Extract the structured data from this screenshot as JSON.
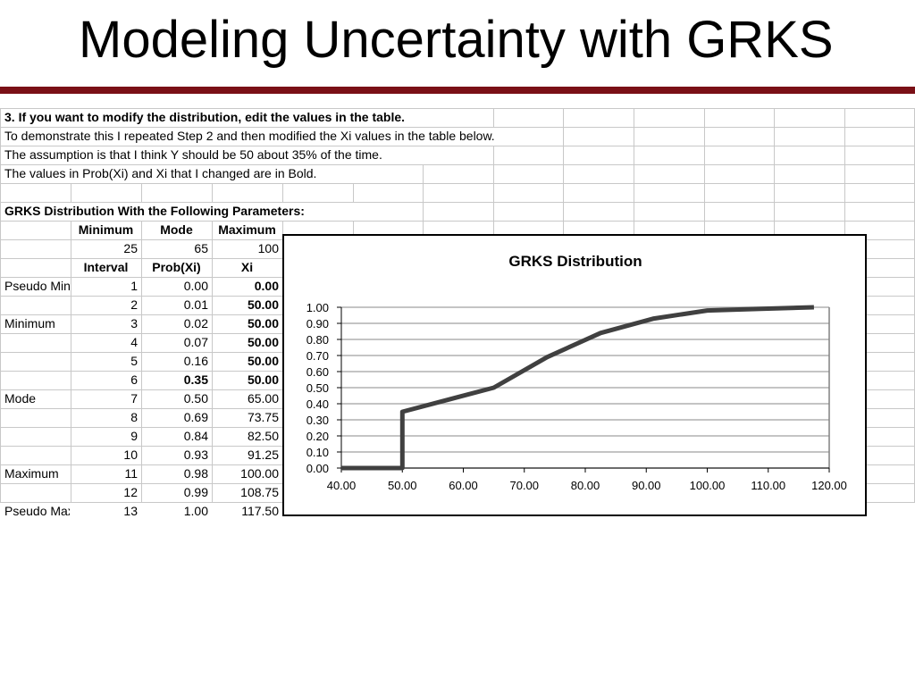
{
  "slide": {
    "title": "Modeling Uncertainty with GRKS",
    "accent": "#7a1016"
  },
  "sheet": {
    "notes": [
      "3.  If you want to modify the distribution, edit the values in the table.",
      "To demonstrate this I repeated Step 2 and then modified the Xi values in the table below.",
      "The assumption is that I think Y should be 50 about 35% of the time.",
      "The values in Prob(Xi) and Xi that I changed are in Bold."
    ],
    "params_heading": "GRKS Distribution With the Following Parameters:",
    "param_headers": [
      "Minimum",
      "Mode",
      "Maximum"
    ],
    "param_values": [
      "25",
      "65",
      "100"
    ],
    "table_headers": [
      "Interval",
      "Prob(Xi)",
      "Xi"
    ],
    "rows": [
      {
        "label": "Pseudo Min",
        "interval": "1",
        "prob": "0.00",
        "xi": "0.00",
        "prob_bold": false,
        "xi_bold": true
      },
      {
        "label": "",
        "interval": "2",
        "prob": "0.01",
        "xi": "50.00",
        "prob_bold": false,
        "xi_bold": true
      },
      {
        "label": "Minimum",
        "interval": "3",
        "prob": "0.02",
        "xi": "50.00",
        "prob_bold": false,
        "xi_bold": true
      },
      {
        "label": "",
        "interval": "4",
        "prob": "0.07",
        "xi": "50.00",
        "prob_bold": false,
        "xi_bold": true
      },
      {
        "label": "",
        "interval": "5",
        "prob": "0.16",
        "xi": "50.00",
        "prob_bold": false,
        "xi_bold": true
      },
      {
        "label": "",
        "interval": "6",
        "prob": "0.35",
        "xi": "50.00",
        "prob_bold": true,
        "xi_bold": true
      },
      {
        "label": "Mode",
        "interval": "7",
        "prob": "0.50",
        "xi": "65.00",
        "prob_bold": false,
        "xi_bold": false
      },
      {
        "label": "",
        "interval": "8",
        "prob": "0.69",
        "xi": "73.75",
        "prob_bold": false,
        "xi_bold": false
      },
      {
        "label": "",
        "interval": "9",
        "prob": "0.84",
        "xi": "82.50",
        "prob_bold": false,
        "xi_bold": false
      },
      {
        "label": "",
        "interval": "10",
        "prob": "0.93",
        "xi": "91.25",
        "prob_bold": false,
        "xi_bold": false
      },
      {
        "label": "Maximum",
        "interval": "11",
        "prob": "0.98",
        "xi": "100.00",
        "prob_bold": false,
        "xi_bold": false
      },
      {
        "label": "",
        "interval": "12",
        "prob": "0.99",
        "xi": "108.75",
        "prob_bold": false,
        "xi_bold": false
      },
      {
        "label": "Pseudo Max",
        "interval": "13",
        "prob": "1.00",
        "xi": "117.50",
        "prob_bold": false,
        "xi_bold": false
      }
    ]
  },
  "chart_data": {
    "type": "line",
    "title": "GRKS Distribution",
    "xlabel": "",
    "ylabel": "",
    "xlim": [
      40,
      120
    ],
    "ylim": [
      0,
      1
    ],
    "x_ticks": [
      "40.00",
      "50.00",
      "60.00",
      "70.00",
      "80.00",
      "90.00",
      "100.00",
      "110.00",
      "120.00"
    ],
    "y_ticks": [
      "0.00",
      "0.10",
      "0.20",
      "0.30",
      "0.40",
      "0.50",
      "0.60",
      "0.70",
      "0.80",
      "0.90",
      "1.00"
    ],
    "grid": true,
    "series": [
      {
        "color": "#404040",
        "points": [
          [
            40,
            0.0
          ],
          [
            50,
            0.0
          ],
          [
            50,
            0.01
          ],
          [
            50,
            0.02
          ],
          [
            50,
            0.07
          ],
          [
            50,
            0.16
          ],
          [
            50,
            0.35
          ],
          [
            65,
            0.5
          ],
          [
            73.75,
            0.69
          ],
          [
            82.5,
            0.84
          ],
          [
            91.25,
            0.93
          ],
          [
            100,
            0.98
          ],
          [
            108.75,
            0.99
          ],
          [
            117.5,
            1.0
          ]
        ]
      }
    ]
  }
}
